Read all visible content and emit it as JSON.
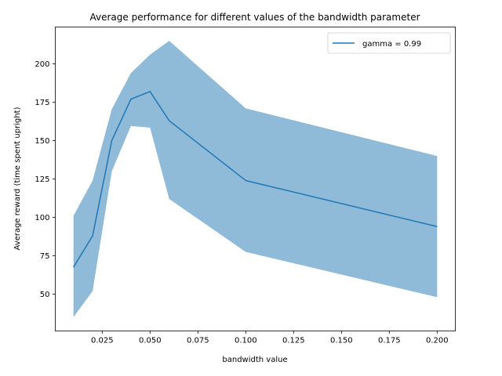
{
  "chart_data": {
    "type": "line",
    "title": "Average performance for different values of the bandwidth parameter",
    "xlabel": "bandwidth value",
    "ylabel": "Average reward (time spent upright)",
    "xlim": [
      0.0005,
      0.2095
    ],
    "ylim": [
      26,
      224
    ],
    "xticks": [
      {
        "value": 0.025,
        "label": "0.025"
      },
      {
        "value": 0.05,
        "label": "0.050"
      },
      {
        "value": 0.075,
        "label": "0.075"
      },
      {
        "value": 0.1,
        "label": "0.100"
      },
      {
        "value": 0.125,
        "label": "0.125"
      },
      {
        "value": 0.15,
        "label": "0.150"
      },
      {
        "value": 0.175,
        "label": "0.175"
      },
      {
        "value": 0.2,
        "label": "0.200"
      }
    ],
    "yticks": [
      {
        "value": 50,
        "label": "50"
      },
      {
        "value": 75,
        "label": "75"
      },
      {
        "value": 100,
        "label": "100"
      },
      {
        "value": 125,
        "label": "125"
      },
      {
        "value": 150,
        "label": "150"
      },
      {
        "value": 175,
        "label": "175"
      },
      {
        "value": 200,
        "label": "200"
      }
    ],
    "grid": false,
    "legend_position": "top-right",
    "series": [
      {
        "name": "gamma = 0.99",
        "color": "#1f77b4",
        "band_color": "#1f77b4",
        "x": [
          0.01,
          0.02,
          0.03,
          0.04,
          0.05,
          0.06,
          0.1,
          0.2
        ],
        "mean": [
          67.5,
          88,
          150,
          177,
          182,
          163,
          124,
          94
        ],
        "lower": [
          35,
          52,
          130,
          159.5,
          158.5,
          112,
          77.5,
          48
        ],
        "upper": [
          101,
          124,
          170.5,
          194,
          206,
          215,
          171,
          140
        ]
      }
    ]
  }
}
